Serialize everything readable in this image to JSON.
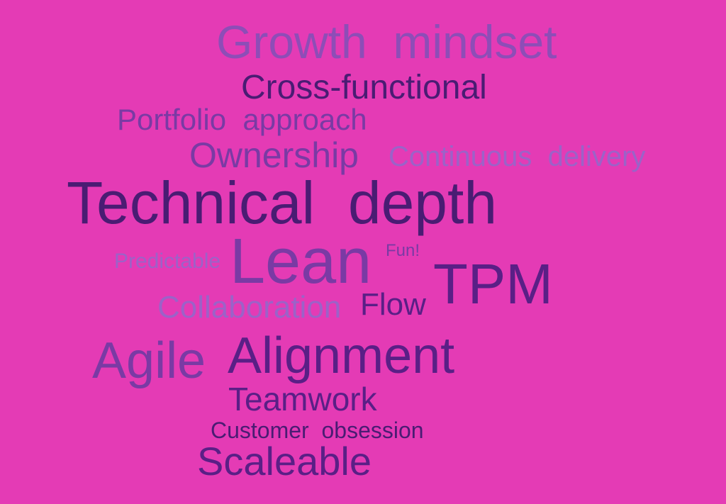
{
  "words": {
    "growth_mindset": "Growth  mindset",
    "cross_functional": "Cross-functional",
    "portfolio_approach": "Portfolio  approach",
    "ownership": "Ownership",
    "continuous_delivery": "Continuous  delivery",
    "technical_depth": "Technical  depth",
    "predictable": "Predictable",
    "lean": "Lean",
    "fun": "Fun!",
    "tpm": "TPM",
    "collaboration": "Collaboration",
    "flow": "Flow",
    "agile": "Agile",
    "alignment": "Alignment",
    "teamwork": "Teamwork",
    "customer_obsession": "Customer  obsession",
    "scaleable": "Scaleable"
  }
}
